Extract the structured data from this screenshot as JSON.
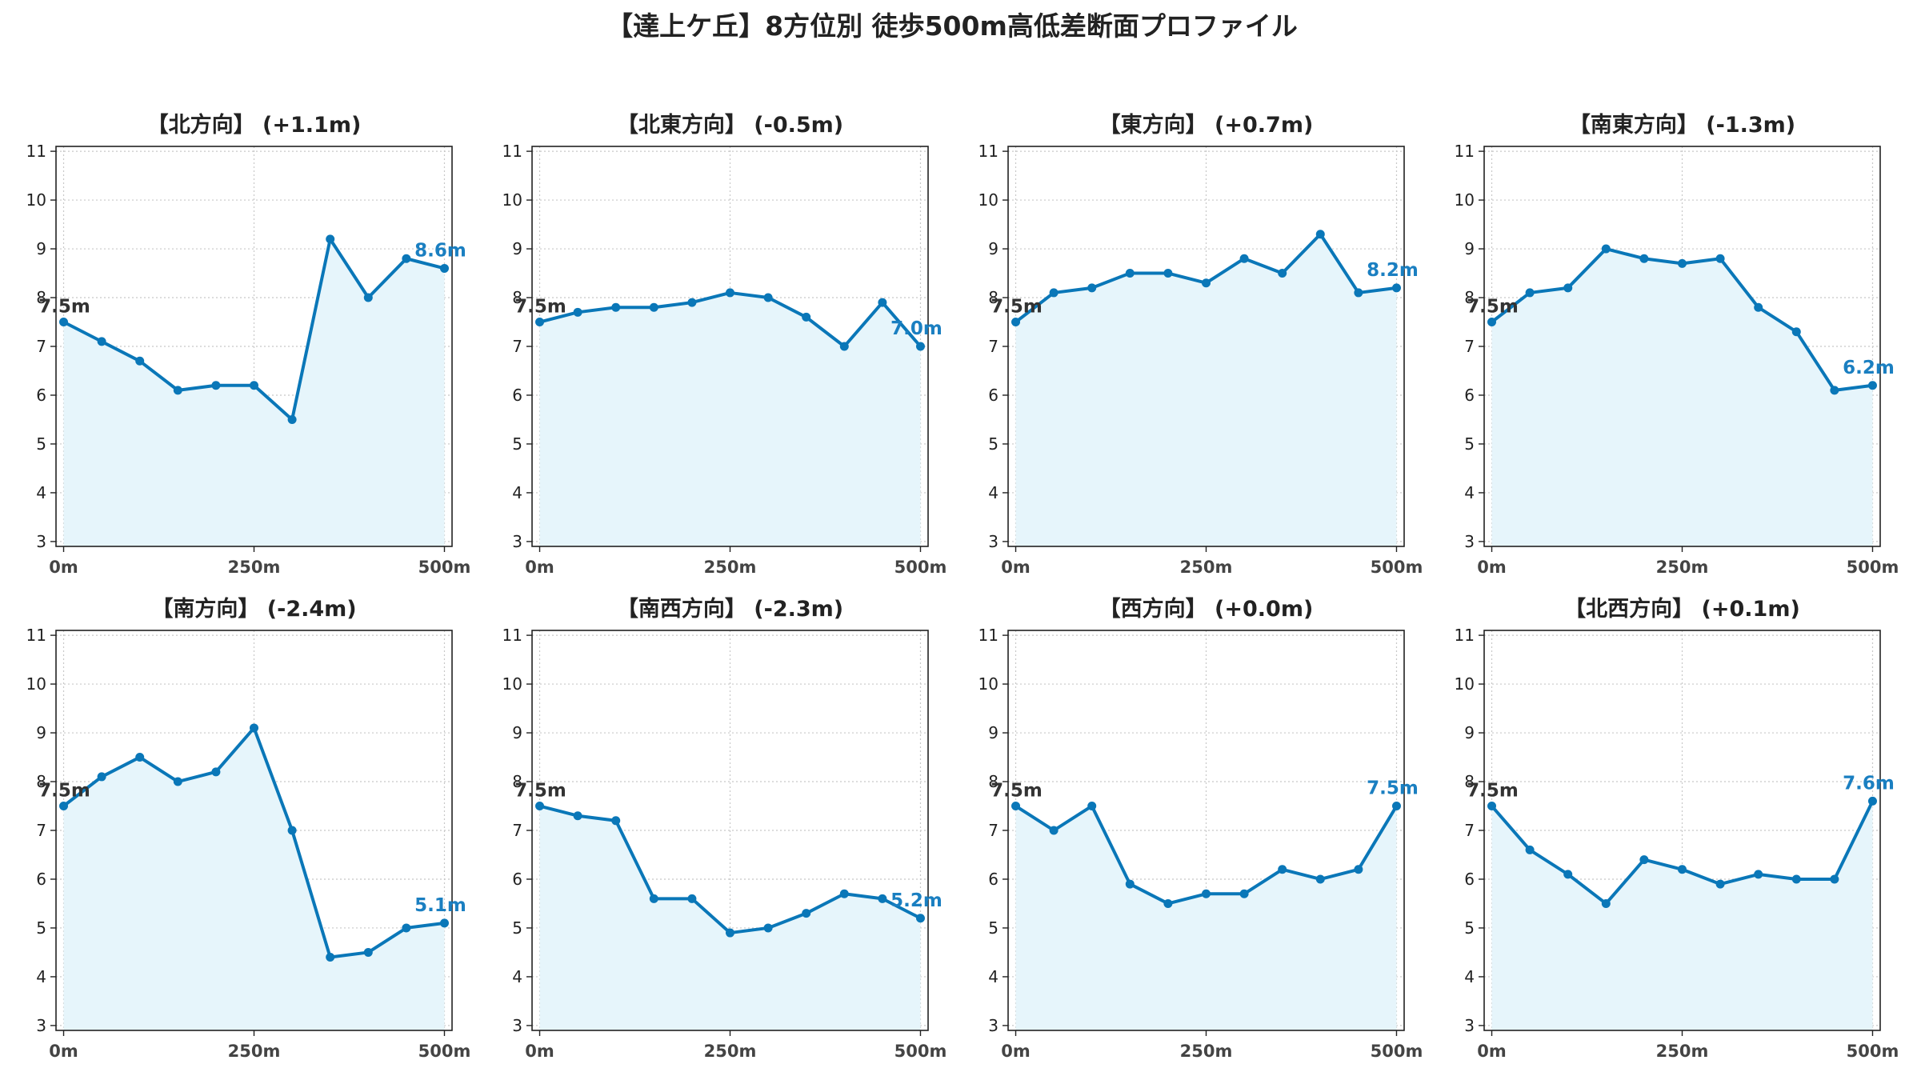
{
  "title": "【達上ケ丘】8方位別 徒歩500m高低差断面プロファイル",
  "colors": {
    "line": "#0a77b8",
    "fill": "#e6f5fb",
    "grid": "#c8c8c8",
    "start_label": "#333333",
    "end_label": "#1a7fc1"
  },
  "chart_data": [
    {
      "type": "area",
      "title": "【北方向】 (+1.1m)",
      "x": [
        0,
        50,
        100,
        150,
        200,
        250,
        300,
        350,
        400,
        450,
        500
      ],
      "x_tick_labels": [
        "0m",
        "250m",
        "500m"
      ],
      "y_ticks": [
        3,
        4,
        5,
        6,
        7,
        8,
        9,
        10,
        11
      ],
      "ylim": [
        2.9,
        11.1
      ],
      "grid": true,
      "values": [
        7.5,
        7.1,
        6.7,
        6.1,
        6.2,
        6.2,
        5.5,
        9.2,
        8.0,
        8.8,
        8.6
      ],
      "start_label": "7.5m",
      "end_label": "8.6m"
    },
    {
      "type": "area",
      "title": "【北東方向】 (-0.5m)",
      "x": [
        0,
        50,
        100,
        150,
        200,
        250,
        300,
        350,
        400,
        450,
        500
      ],
      "x_tick_labels": [
        "0m",
        "250m",
        "500m"
      ],
      "y_ticks": [
        3,
        4,
        5,
        6,
        7,
        8,
        9,
        10,
        11
      ],
      "ylim": [
        2.9,
        11.1
      ],
      "grid": true,
      "values": [
        7.5,
        7.7,
        7.8,
        7.8,
        7.9,
        8.1,
        8.0,
        7.6,
        7.0,
        7.9,
        7.0
      ],
      "start_label": "7.5m",
      "end_label": "7.0m"
    },
    {
      "type": "area",
      "title": "【東方向】 (+0.7m)",
      "x": [
        0,
        50,
        100,
        150,
        200,
        250,
        300,
        350,
        400,
        450,
        500
      ],
      "x_tick_labels": [
        "0m",
        "250m",
        "500m"
      ],
      "y_ticks": [
        3,
        4,
        5,
        6,
        7,
        8,
        9,
        10,
        11
      ],
      "ylim": [
        2.9,
        11.1
      ],
      "grid": true,
      "values": [
        7.5,
        8.1,
        8.2,
        8.5,
        8.5,
        8.3,
        8.8,
        8.5,
        9.3,
        8.1,
        8.2
      ],
      "start_label": "7.5m",
      "end_label": "8.2m"
    },
    {
      "type": "area",
      "title": "【南東方向】 (-1.3m)",
      "x": [
        0,
        50,
        100,
        150,
        200,
        250,
        300,
        350,
        400,
        450,
        500
      ],
      "x_tick_labels": [
        "0m",
        "250m",
        "500m"
      ],
      "y_ticks": [
        3,
        4,
        5,
        6,
        7,
        8,
        9,
        10,
        11
      ],
      "ylim": [
        2.9,
        11.1
      ],
      "grid": true,
      "values": [
        7.5,
        8.1,
        8.2,
        9.0,
        8.8,
        8.7,
        8.8,
        7.8,
        7.3,
        6.1,
        6.2
      ],
      "start_label": "7.5m",
      "end_label": "6.2m"
    },
    {
      "type": "area",
      "title": "【南方向】 (-2.4m)",
      "x": [
        0,
        50,
        100,
        150,
        200,
        250,
        300,
        350,
        400,
        450,
        500
      ],
      "x_tick_labels": [
        "0m",
        "250m",
        "500m"
      ],
      "y_ticks": [
        3,
        4,
        5,
        6,
        7,
        8,
        9,
        10,
        11
      ],
      "ylim": [
        2.9,
        11.1
      ],
      "grid": true,
      "values": [
        7.5,
        8.1,
        8.5,
        8.0,
        8.2,
        9.1,
        7.0,
        4.4,
        4.5,
        5.0,
        5.1
      ],
      "start_label": "7.5m",
      "end_label": "5.1m"
    },
    {
      "type": "area",
      "title": "【南西方向】 (-2.3m)",
      "x": [
        0,
        50,
        100,
        150,
        200,
        250,
        300,
        350,
        400,
        450,
        500
      ],
      "x_tick_labels": [
        "0m",
        "250m",
        "500m"
      ],
      "y_ticks": [
        3,
        4,
        5,
        6,
        7,
        8,
        9,
        10,
        11
      ],
      "ylim": [
        2.9,
        11.1
      ],
      "grid": true,
      "values": [
        7.5,
        7.3,
        7.2,
        5.6,
        5.6,
        4.9,
        5.0,
        5.3,
        5.7,
        5.6,
        5.2
      ],
      "start_label": "7.5m",
      "end_label": "5.2m"
    },
    {
      "type": "area",
      "title": "【西方向】 (+0.0m)",
      "x": [
        0,
        50,
        100,
        150,
        200,
        250,
        300,
        350,
        400,
        450,
        500
      ],
      "x_tick_labels": [
        "0m",
        "250m",
        "500m"
      ],
      "y_ticks": [
        3,
        4,
        5,
        6,
        7,
        8,
        9,
        10,
        11
      ],
      "ylim": [
        2.9,
        11.1
      ],
      "grid": true,
      "values": [
        7.5,
        7.0,
        7.5,
        5.9,
        5.5,
        5.7,
        5.7,
        6.2,
        6.0,
        6.2,
        7.5
      ],
      "start_label": "7.5m",
      "end_label": "7.5m"
    },
    {
      "type": "area",
      "title": "【北西方向】 (+0.1m)",
      "x": [
        0,
        50,
        100,
        150,
        200,
        250,
        300,
        350,
        400,
        450,
        500
      ],
      "x_tick_labels": [
        "0m",
        "250m",
        "500m"
      ],
      "y_ticks": [
        3,
        4,
        5,
        6,
        7,
        8,
        9,
        10,
        11
      ],
      "ylim": [
        2.9,
        11.1
      ],
      "grid": true,
      "values": [
        7.5,
        6.6,
        6.1,
        5.5,
        6.4,
        6.2,
        5.9,
        6.1,
        6.0,
        6.0,
        7.6
      ],
      "start_label": "7.5m",
      "end_label": "7.6m"
    }
  ]
}
